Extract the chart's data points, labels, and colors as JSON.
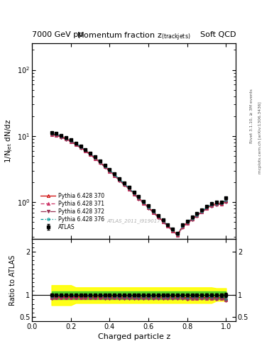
{
  "title_left": "7000 GeV pp",
  "title_right": "Soft QCD",
  "plot_title": "Momentum fraction z$_{\\sf (track jets)}$",
  "xlabel": "Charged particle z",
  "ylabel_main": "1/N$_{\\sf jet}$ dN/dz",
  "ylabel_ratio": "Ratio to ATLAS",
  "watermark": "ATLAS_2011_I919017",
  "right_label_top": "Rivet 3.1.10, ≥ 3M events",
  "right_label_bot": "mcplots.cern.ch [arXiv:1306.3436]",
  "xlim": [
    0.0,
    1.05
  ],
  "ylim_main": [
    0.28,
    250
  ],
  "ylim_ratio": [
    0.4,
    2.3
  ],
  "z_values": [
    0.1,
    0.125,
    0.15,
    0.175,
    0.2,
    0.225,
    0.25,
    0.275,
    0.3,
    0.325,
    0.35,
    0.375,
    0.4,
    0.425,
    0.45,
    0.475,
    0.5,
    0.525,
    0.55,
    0.575,
    0.6,
    0.625,
    0.65,
    0.675,
    0.7,
    0.725,
    0.75,
    0.775,
    0.8,
    0.825,
    0.85,
    0.875,
    0.9,
    0.925,
    0.95,
    0.975,
    1.0
  ],
  "atlas_values": [
    11.2,
    10.9,
    10.2,
    9.5,
    8.7,
    7.85,
    7.05,
    6.3,
    5.55,
    4.85,
    4.2,
    3.65,
    3.12,
    2.68,
    2.28,
    1.96,
    1.67,
    1.42,
    1.21,
    1.03,
    0.876,
    0.746,
    0.634,
    0.54,
    0.46,
    0.392,
    0.335,
    0.45,
    0.52,
    0.59,
    0.67,
    0.76,
    0.86,
    0.95,
    1.0,
    1.0,
    1.15
  ],
  "atlas_errors": [
    0.35,
    0.3,
    0.27,
    0.24,
    0.21,
    0.19,
    0.17,
    0.15,
    0.13,
    0.115,
    0.1,
    0.088,
    0.075,
    0.065,
    0.055,
    0.047,
    0.04,
    0.034,
    0.029,
    0.025,
    0.021,
    0.018,
    0.015,
    0.013,
    0.011,
    0.009,
    0.008,
    0.012,
    0.014,
    0.016,
    0.019,
    0.022,
    0.026,
    0.03,
    0.035,
    0.04,
    0.055
  ],
  "py370_values": [
    10.7,
    10.5,
    9.85,
    9.15,
    8.4,
    7.57,
    6.8,
    6.07,
    5.33,
    4.66,
    4.04,
    3.5,
    2.99,
    2.57,
    2.19,
    1.88,
    1.6,
    1.36,
    1.16,
    0.985,
    0.838,
    0.714,
    0.607,
    0.517,
    0.441,
    0.376,
    0.321,
    0.43,
    0.49,
    0.56,
    0.635,
    0.72,
    0.82,
    0.9,
    0.95,
    0.96,
    1.05
  ],
  "py371_values": [
    10.5,
    10.3,
    9.65,
    8.98,
    8.23,
    7.42,
    6.67,
    5.95,
    5.22,
    4.57,
    3.96,
    3.43,
    2.93,
    2.52,
    2.14,
    1.84,
    1.57,
    1.33,
    1.13,
    0.964,
    0.82,
    0.699,
    0.595,
    0.507,
    0.432,
    0.368,
    0.315,
    0.42,
    0.48,
    0.55,
    0.62,
    0.71,
    0.8,
    0.88,
    0.92,
    0.93,
    1.02
  ],
  "py372_values": [
    10.4,
    10.2,
    9.58,
    8.91,
    8.17,
    7.36,
    6.62,
    5.9,
    5.18,
    4.53,
    3.93,
    3.4,
    2.9,
    2.5,
    2.12,
    1.82,
    1.55,
    1.32,
    1.12,
    0.954,
    0.811,
    0.692,
    0.588,
    0.501,
    0.428,
    0.364,
    0.311,
    0.415,
    0.476,
    0.545,
    0.618,
    0.705,
    0.796,
    0.874,
    0.915,
    0.925,
    1.01
  ],
  "py376_values": [
    10.9,
    10.7,
    10.05,
    9.35,
    8.57,
    7.73,
    6.94,
    6.2,
    5.44,
    4.76,
    4.13,
    3.57,
    3.06,
    2.62,
    2.23,
    1.92,
    1.63,
    1.39,
    1.18,
    1.0,
    0.854,
    0.728,
    0.62,
    0.528,
    0.45,
    0.384,
    0.328,
    0.44,
    0.5,
    0.57,
    0.648,
    0.735,
    0.835,
    0.92,
    0.965,
    0.975,
    1.07
  ],
  "color_atlas": "#000000",
  "color_py370": "#cc0000",
  "color_py371": "#cc3366",
  "color_py372": "#993355",
  "color_py376": "#009999",
  "ratio_yticks": [
    0.5,
    1.0,
    2.0
  ],
  "ratio_yticklabels": [
    "0.5",
    "1",
    "2"
  ]
}
